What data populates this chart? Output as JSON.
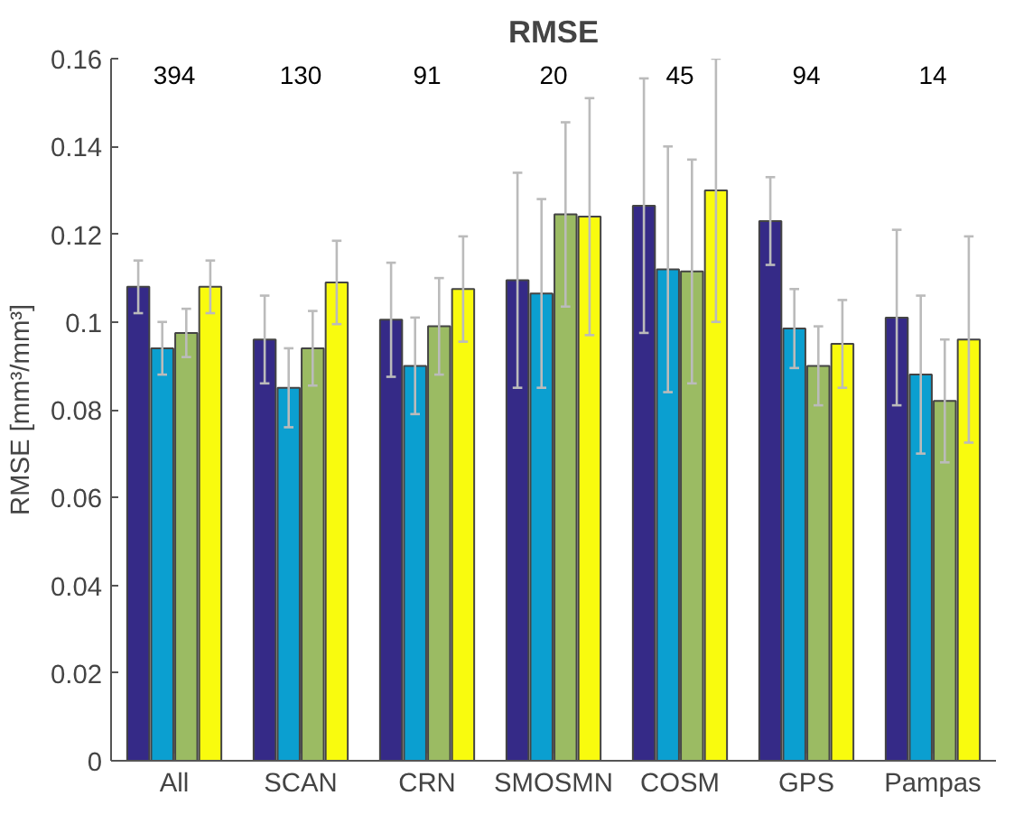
{
  "chart_data": {
    "type": "bar",
    "title": "RMSE",
    "ylabel": "RMSE [mm³/mm³]",
    "categories": [
      "All",
      "SCAN",
      "CRN",
      "SMOSMN",
      "COSM",
      "GPS",
      "Pampas"
    ],
    "series": [
      {
        "color": "#352a87",
        "values": [
          0.108,
          0.096,
          0.1005,
          0.1095,
          0.1265,
          0.123,
          0.101
        ],
        "errors": [
          0.006,
          0.01,
          0.013,
          0.0245,
          0.029,
          0.01,
          0.02
        ]
      },
      {
        "color": "#0b9fd0",
        "values": [
          0.094,
          0.085,
          0.09,
          0.1065,
          0.112,
          0.0985,
          0.088
        ],
        "errors": [
          0.006,
          0.009,
          0.011,
          0.0215,
          0.028,
          0.009,
          0.018
        ]
      },
      {
        "color": "#9bbb63",
        "values": [
          0.0975,
          0.094,
          0.099,
          0.1245,
          0.1115,
          0.09,
          0.082
        ],
        "errors": [
          0.0055,
          0.0085,
          0.011,
          0.021,
          0.0255,
          0.009,
          0.014
        ]
      },
      {
        "color": "#f9fb0e",
        "values": [
          0.108,
          0.109,
          0.1075,
          0.124,
          0.13,
          0.095,
          0.096
        ],
        "errors": [
          0.006,
          0.0095,
          0.012,
          0.027,
          0.03,
          0.01,
          0.0235
        ]
      }
    ],
    "annotations": [
      "394",
      "130",
      "91",
      "20",
      "45",
      "94",
      "14"
    ],
    "ylim": [
      0,
      0.16
    ],
    "yticks": [
      0,
      0.02,
      0.04,
      0.06,
      0.08,
      0.1,
      0.12,
      0.14,
      0.16
    ],
    "grid": false
  }
}
